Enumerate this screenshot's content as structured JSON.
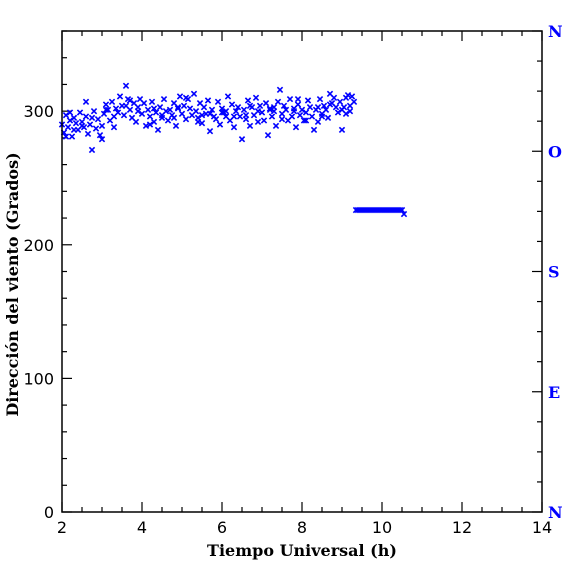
{
  "chart_data": {
    "type": "scatter",
    "xlabel": "Tiempo Universal (h)",
    "ylabel": "Dirección del viento (Grados)",
    "xlim": [
      2,
      14
    ],
    "ylim": [
      0,
      360
    ],
    "x_ticks": [
      2,
      4,
      6,
      8,
      10,
      12,
      14
    ],
    "x_tick_labels": [
      "2",
      "4",
      "6",
      "8",
      "10",
      "12",
      "14"
    ],
    "y_ticks": [
      0,
      100,
      200,
      300
    ],
    "y_tick_labels": [
      "0",
      "100",
      "200",
      "300"
    ],
    "right_axis": {
      "labels": [
        {
          "text": "N",
          "value": 360
        },
        {
          "text": "O",
          "value": 270
        },
        {
          "text": "S",
          "value": 180
        },
        {
          "text": "E",
          "value": 90
        },
        {
          "text": "N",
          "value": 0
        }
      ],
      "color": "#0000ff"
    },
    "marker": "x",
    "color": "#0000ff",
    "grid": false,
    "series": [
      {
        "values_x": [
          2.0,
          2.05,
          2.1,
          2.15,
          2.2,
          2.25,
          2.3,
          2.35,
          2.4,
          2.45,
          2.5,
          2.55,
          2.6,
          2.65,
          2.7,
          2.75,
          2.8,
          2.85,
          2.9,
          2.95,
          3.0,
          3.05,
          3.1,
          3.15,
          3.2,
          3.25,
          3.3,
          3.35,
          3.4,
          3.45,
          3.5,
          3.55,
          3.6,
          3.65,
          3.7,
          3.75,
          3.8,
          3.85,
          3.9,
          3.95,
          4.0,
          4.05,
          4.1,
          4.15,
          4.2,
          4.25,
          4.3,
          4.35,
          4.4,
          4.45,
          4.5,
          4.55,
          4.6,
          4.65,
          4.7,
          4.75,
          4.8,
          4.85,
          4.9,
          4.95,
          5.0,
          5.05,
          5.1,
          5.15,
          5.2,
          5.25,
          5.3,
          5.35,
          5.4,
          5.45,
          5.5,
          5.55,
          5.6,
          5.65,
          5.7,
          5.75,
          5.8,
          5.85,
          5.9,
          5.95,
          6.0,
          6.05,
          6.1,
          6.15,
          6.2,
          6.25,
          6.3,
          6.35,
          6.4,
          6.45,
          6.5,
          6.55,
          6.6,
          6.65,
          6.7,
          6.75,
          6.8,
          6.85,
          6.9,
          6.95,
          7.0,
          7.05,
          7.1,
          7.15,
          7.2,
          7.25,
          7.3,
          7.35,
          7.4,
          7.45,
          7.5,
          7.55,
          7.6,
          7.65,
          7.7,
          7.75,
          7.8,
          7.85,
          7.9,
          7.95,
          8.0,
          8.05,
          8.1,
          8.15,
          8.2,
          8.25,
          8.3,
          8.35,
          8.4,
          8.45,
          8.5,
          8.55,
          8.6,
          8.65,
          8.7,
          8.75,
          8.8,
          8.85,
          8.9,
          8.95,
          9.0,
          9.05,
          9.1,
          9.15,
          9.2,
          9.25,
          9.3,
          2.1,
          2.3,
          2.5,
          2.75,
          3.0,
          3.3,
          3.6,
          3.9,
          4.2,
          4.5,
          4.8,
          5.1,
          5.4,
          5.7,
          6.0,
          6.3,
          6.6,
          6.9,
          7.2,
          7.5,
          7.8,
          8.1,
          8.4,
          8.7,
          9.0,
          9.2,
          2.2,
          2.6,
          3.1,
          3.7,
          4.3,
          4.9,
          5.5,
          6.1,
          6.7,
          7.3,
          7.9,
          8.5,
          9.1
        ],
        "values_y": [
          290,
          284,
          297,
          288,
          293,
          281,
          295,
          291,
          286,
          299,
          292,
          288,
          296,
          283,
          290,
          271,
          300,
          287,
          294,
          282,
          289,
          298,
          305,
          301,
          293,
          307,
          296,
          302,
          299,
          311,
          304,
          297,
          319,
          309,
          301,
          295,
          306,
          292,
          303,
          309,
          298,
          306,
          289,
          301,
          296,
          307,
          292,
          299,
          286,
          303,
          295,
          309,
          300,
          293,
          301,
          297,
          306,
          289,
          303,
          311,
          298,
          304,
          294,
          309,
          302,
          297,
          313,
          300,
          295,
          306,
          291,
          303,
          298,
          308,
          285,
          301,
          296,
          294,
          307,
          290,
          302,
          299,
          296,
          311,
          293,
          305,
          288,
          300,
          303,
          296,
          279,
          301,
          294,
          308,
          289,
          303,
          297,
          310,
          292,
          304,
          299,
          293,
          306,
          282,
          301,
          296,
          303,
          289,
          307,
          316,
          298,
          304,
          301,
          293,
          309,
          296,
          300,
          288,
          305,
          297,
          301,
          293,
          299,
          308,
          303,
          296,
          286,
          301,
          292,
          309,
          298,
          304,
          301,
          295,
          313,
          306,
          310,
          303,
          299,
          307,
          286,
          303,
          310,
          312,
          304,
          311,
          307,
          281,
          286,
          289,
          295,
          279,
          288,
          304,
          300,
          290,
          297,
          295,
          310,
          292,
          298,
          299,
          296,
          297,
          300,
          302,
          294,
          302,
          293,
          303,
          305,
          301,
          300,
          299,
          307,
          301,
          308,
          302,
          302,
          297,
          300,
          304,
          300,
          309,
          296,
          298
        ]
      },
      {
        "values_x": [
          9.35,
          9.4,
          9.45,
          9.5,
          9.55,
          9.6,
          9.65,
          9.7,
          9.75,
          9.8,
          9.85,
          9.9,
          9.95,
          10.0,
          10.05,
          10.1,
          10.15,
          10.2,
          10.25,
          10.3,
          10.35,
          10.4,
          10.45,
          10.5,
          10.55
        ],
        "values_y": [
          226,
          226,
          226,
          226,
          226,
          226,
          226,
          226,
          226,
          226,
          226,
          226,
          226,
          226,
          226,
          226,
          226,
          226,
          226,
          226,
          226,
          226,
          226,
          226,
          223
        ]
      }
    ]
  }
}
